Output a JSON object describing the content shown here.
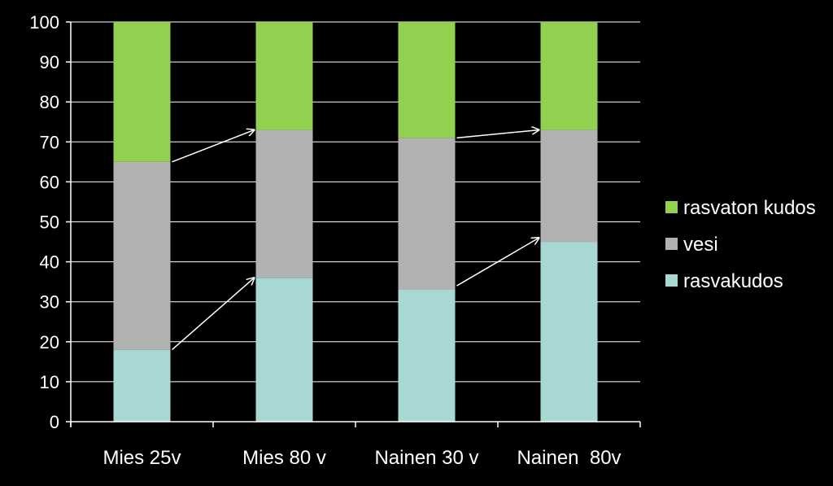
{
  "chart_data": {
    "type": "bar",
    "stacked": true,
    "categories": [
      "Mies 25v",
      "Mies 80 v",
      "Nainen 30 v",
      "Nainen  80v"
    ],
    "series": [
      {
        "name": "rasvakudos",
        "color": "#a8d8d4",
        "values": [
          18,
          36,
          33,
          45
        ]
      },
      {
        "name": "vesi",
        "color": "#b2b2b2",
        "values": [
          47,
          37,
          38,
          28
        ]
      },
      {
        "name": "rasvaton kudos",
        "color": "#92d050",
        "values": [
          35,
          27,
          29,
          27
        ]
      }
    ],
    "legend_order": [
      "rasvaton kudos",
      "vesi",
      "rasvakudos"
    ],
    "ylim": [
      0,
      100
    ],
    "yticks": [
      0,
      10,
      20,
      30,
      40,
      50,
      60,
      70,
      80,
      90,
      100
    ],
    "grid": true,
    "legend_position": "right",
    "annotations": [
      {
        "type": "arrow",
        "from": [
          0,
          65
        ],
        "to": [
          1,
          73
        ]
      },
      {
        "type": "arrow",
        "from": [
          0,
          18
        ],
        "to": [
          1,
          36
        ]
      },
      {
        "type": "arrow",
        "from": [
          2,
          71
        ],
        "to": [
          3,
          73
        ]
      },
      {
        "type": "arrow",
        "from": [
          2,
          34
        ],
        "to": [
          3,
          46
        ]
      }
    ],
    "colors": {
      "background": "#000000",
      "text": "#ffffff",
      "grid": "#ffffff",
      "arrow": "#ffffff"
    }
  }
}
